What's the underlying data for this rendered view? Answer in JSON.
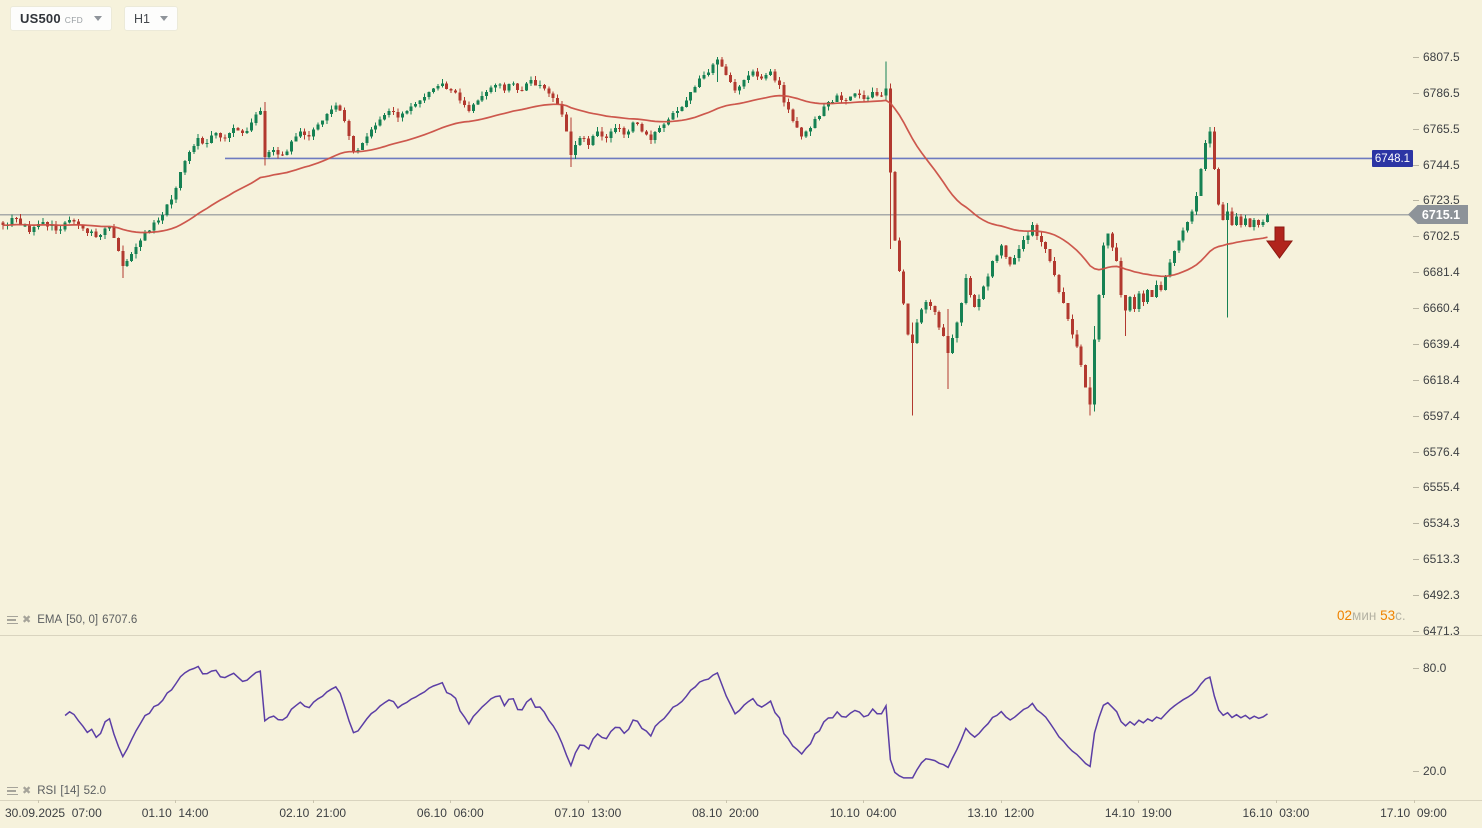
{
  "app": {
    "symbol": "US500",
    "instrument_type": "CFD",
    "timeframe": "H1"
  },
  "legends": {
    "ema": {
      "name": "EMA",
      "params": "[50, 0]",
      "value": "6707.6"
    },
    "rsi": {
      "name": "RSI",
      "params": "[14]",
      "value": "52.0"
    }
  },
  "timer": {
    "minutes": "02",
    "min_label": "мин",
    "seconds": "53",
    "sec_label": "с."
  },
  "levels": {
    "blue_label": "6748.1",
    "price_tag": "6715.1"
  },
  "colors": {
    "background": "#f6f2dc",
    "candle_up": "#168153",
    "candle_down": "#b2392f",
    "ema_line": "#ca4f44",
    "rsi_line": "#5b3ea5",
    "level_blue_line": "#6e7bc0",
    "level_blue_bg": "#2c35a4",
    "price_line": "#8d9399",
    "price_tag_bg": "#8d9399",
    "timer_orange": "#ef8200",
    "timer_gray": "#b5b3a4",
    "arrow_red": "#b1241c"
  },
  "chart_data": {
    "type": "candlestick",
    "title": "US500 CFD H1 with EMA(50) overlay and RSI(14) subpane",
    "ylim": [
      6471.3,
      6807.5
    ],
    "price_ticks": [
      6807.5,
      6786.5,
      6765.5,
      6744.5,
      6723.5,
      6702.5,
      6681.4,
      6660.4,
      6639.4,
      6618.4,
      6597.4,
      6576.4,
      6555.4,
      6534.3,
      6513.3,
      6492.3,
      6471.3
    ],
    "rsi_ticks": [
      80.0,
      20.0
    ],
    "date_ticks": [
      "30.09.2025  07:00",
      "01.10  14:00",
      "02.10  21:00",
      "06.10  06:00",
      "07.10  13:00",
      "08.10  20:00",
      "10.10  04:00",
      "13.10  12:00",
      "14.10  19:00",
      "16.10  03:00",
      "17.10  09:00"
    ],
    "resistance_level": 6748.1,
    "last_price": 6715.1,
    "ema_period": 50,
    "rsi_period": 14,
    "candle_count": 286,
    "close_anchors": [
      [
        0,
        6709
      ],
      [
        3,
        6713
      ],
      [
        6,
        6705
      ],
      [
        9,
        6711
      ],
      [
        12,
        6706
      ],
      [
        15,
        6712
      ],
      [
        18,
        6707
      ],
      [
        21,
        6702
      ],
      [
        24,
        6708
      ],
      [
        26,
        6694
      ],
      [
        27,
        6685
      ],
      [
        29,
        6692
      ],
      [
        31,
        6700
      ],
      [
        33,
        6706
      ],
      [
        36,
        6715
      ],
      [
        38,
        6724
      ],
      [
        40,
        6740
      ],
      [
        42,
        6752
      ],
      [
        44,
        6760
      ],
      [
        46,
        6757
      ],
      [
        48,
        6763
      ],
      [
        50,
        6760
      ],
      [
        52,
        6766
      ],
      [
        54,
        6763
      ],
      [
        56,
        6769
      ],
      [
        58,
        6776
      ],
      [
        59,
        6749
      ],
      [
        61,
        6753
      ],
      [
        63,
        6750
      ],
      [
        65,
        6758
      ],
      [
        67,
        6764
      ],
      [
        69,
        6761
      ],
      [
        71,
        6768
      ],
      [
        73,
        6774
      ],
      [
        75,
        6779
      ],
      [
        77,
        6770
      ],
      [
        79,
        6752
      ],
      [
        81,
        6757
      ],
      [
        83,
        6765
      ],
      [
        85,
        6771
      ],
      [
        87,
        6776
      ],
      [
        89,
        6772
      ],
      [
        91,
        6776
      ],
      [
        93,
        6780
      ],
      [
        95,
        6784
      ],
      [
        97,
        6789
      ],
      [
        99,
        6792
      ],
      [
        101,
        6788
      ],
      [
        103,
        6782
      ],
      [
        105,
        6776
      ],
      [
        107,
        6782
      ],
      [
        109,
        6787
      ],
      [
        111,
        6791
      ],
      [
        113,
        6788
      ],
      [
        115,
        6792
      ],
      [
        117,
        6788
      ],
      [
        119,
        6794
      ],
      [
        121,
        6791
      ],
      [
        123,
        6786
      ],
      [
        125,
        6780
      ],
      [
        127,
        6764
      ],
      [
        128,
        6750
      ],
      [
        130,
        6760
      ],
      [
        132,
        6756
      ],
      [
        134,
        6764
      ],
      [
        136,
        6760
      ],
      [
        138,
        6766
      ],
      [
        140,
        6762
      ],
      [
        142,
        6769
      ],
      [
        144,
        6764
      ],
      [
        146,
        6759
      ],
      [
        148,
        6766
      ],
      [
        150,
        6771
      ],
      [
        152,
        6776
      ],
      [
        154,
        6782
      ],
      [
        156,
        6790
      ],
      [
        158,
        6797
      ],
      [
        160,
        6803
      ],
      [
        161,
        6806
      ],
      [
        163,
        6797
      ],
      [
        165,
        6788
      ],
      [
        167,
        6794
      ],
      [
        169,
        6799
      ],
      [
        171,
        6795
      ],
      [
        173,
        6799
      ],
      [
        175,
        6791
      ],
      [
        176,
        6781
      ],
      [
        178,
        6770
      ],
      [
        180,
        6761
      ],
      [
        182,
        6766
      ],
      [
        184,
        6773
      ],
      [
        186,
        6781
      ],
      [
        188,
        6785
      ],
      [
        190,
        6782
      ],
      [
        192,
        6786
      ],
      [
        194,
        6783
      ],
      [
        196,
        6787
      ],
      [
        198,
        6785
      ],
      [
        199,
        6789
      ],
      [
        200,
        6740
      ],
      [
        201,
        6700
      ],
      [
        202,
        6682
      ],
      [
        203,
        6663
      ],
      [
        204,
        6645
      ],
      [
        205,
        6640
      ],
      [
        206,
        6652
      ],
      [
        208,
        6664
      ],
      [
        210,
        6658
      ],
      [
        212,
        6644
      ],
      [
        213,
        6634
      ],
      [
        215,
        6652
      ],
      [
        217,
        6678
      ],
      [
        218,
        6668
      ],
      [
        219,
        6661
      ],
      [
        221,
        6673
      ],
      [
        223,
        6688
      ],
      [
        225,
        6697
      ],
      [
        227,
        6686
      ],
      [
        229,
        6695
      ],
      [
        231,
        6703
      ],
      [
        232,
        6709
      ],
      [
        234,
        6699
      ],
      [
        236,
        6688
      ],
      [
        238,
        6670
      ],
      [
        240,
        6654
      ],
      [
        241,
        6645
      ],
      [
        242,
        6638
      ],
      [
        243,
        6627
      ],
      [
        244,
        6614
      ],
      [
        245,
        6604
      ],
      [
        246,
        6642
      ],
      [
        247,
        6668
      ],
      [
        248,
        6697
      ],
      [
        249,
        6704
      ],
      [
        250,
        6696
      ],
      [
        251,
        6688
      ],
      [
        252,
        6668
      ],
      [
        253,
        6659
      ],
      [
        254,
        6667
      ],
      [
        255,
        6660
      ],
      [
        256,
        6669
      ],
      [
        257,
        6664
      ],
      [
        258,
        6671
      ],
      [
        259,
        6667
      ],
      [
        260,
        6674
      ],
      [
        261,
        6671
      ],
      [
        262,
        6679
      ],
      [
        263,
        6687
      ],
      [
        264,
        6694
      ],
      [
        265,
        6700
      ],
      [
        266,
        6706
      ],
      [
        267,
        6711
      ],
      [
        268,
        6717
      ],
      [
        269,
        6726
      ],
      [
        270,
        6742
      ],
      [
        271,
        6757
      ],
      [
        272,
        6764
      ],
      [
        273,
        6742
      ],
      [
        274,
        6721
      ],
      [
        275,
        6712
      ],
      [
        276,
        6717
      ],
      [
        277,
        6709
      ],
      [
        278,
        6714
      ],
      [
        279,
        6709
      ],
      [
        280,
        6713
      ],
      [
        281,
        6708
      ],
      [
        282,
        6712
      ],
      [
        283,
        6709
      ],
      [
        284,
        6711
      ],
      [
        285,
        6715.1
      ]
    ],
    "wick_overrides": {
      "27": [
        6678,
        6697
      ],
      "59": [
        6744,
        6781
      ],
      "128": [
        6743,
        6772
      ],
      "161": [
        6793,
        6807.5
      ],
      "199": [
        6782,
        6805
      ],
      "200": [
        6695,
        6792
      ],
      "205": [
        6597.4,
        6652
      ],
      "213": [
        6613,
        6660
      ],
      "245": [
        6597.4,
        6620
      ],
      "246": [
        6600,
        6650
      ],
      "253": [
        6644,
        6668
      ],
      "276": [
        6655,
        6722
      ]
    },
    "noise_amplitude": 2.0,
    "wick_amplitude": 2.6,
    "legend_position": "top-left-of-each-pane",
    "grid": false
  }
}
